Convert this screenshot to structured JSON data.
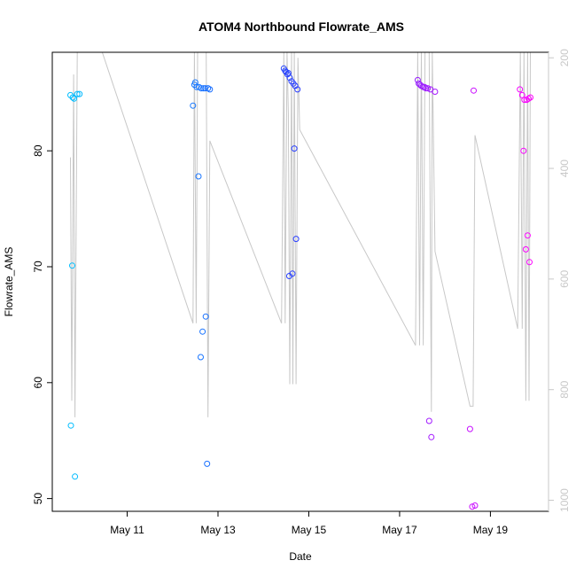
{
  "chart_data": {
    "type": "scatter",
    "title": "ATOM4 Northbound Flowrate_AMS",
    "xlabel": "Date",
    "ylabel": "Flowrate_AMS",
    "xlim": [
      9.35,
      20.28
    ],
    "ylim": [
      48.9,
      88.5
    ],
    "y2lim": [
      1020,
      190
    ],
    "x_ticks": [
      {
        "value": 11,
        "label": "May 11"
      },
      {
        "value": 13,
        "label": "May 13"
      },
      {
        "value": 15,
        "label": "May 15"
      },
      {
        "value": 17,
        "label": "May 17"
      },
      {
        "value": 19,
        "label": "May 19"
      }
    ],
    "y_ticks": [
      {
        "value": 50,
        "label": "50"
      },
      {
        "value": 60,
        "label": "60"
      },
      {
        "value": 70,
        "label": "70"
      },
      {
        "value": 80,
        "label": "80"
      }
    ],
    "y2_ticks": [
      {
        "value": 200,
        "label": "200"
      },
      {
        "value": 400,
        "label": "400"
      },
      {
        "value": 600,
        "label": "600"
      },
      {
        "value": 800,
        "label": "800"
      },
      {
        "value": 1000,
        "label": "1000"
      }
    ],
    "series": [
      {
        "name": "Flowrate_AMS (points)",
        "color_start": "#00bfff",
        "color_end": "#ff00ff",
        "points": [
          [
            9.75,
            84.8
          ],
          [
            9.76,
            56.3
          ],
          [
            9.79,
            70.1
          ],
          [
            9.8,
            84.6
          ],
          [
            9.83,
            84.5
          ],
          [
            9.85,
            51.9
          ],
          [
            9.9,
            84.9
          ],
          [
            9.95,
            84.9
          ],
          [
            12.45,
            83.9
          ],
          [
            12.48,
            85.7
          ],
          [
            12.5,
            85.9
          ],
          [
            12.53,
            85.5
          ],
          [
            12.57,
            77.8
          ],
          [
            12.58,
            85.5
          ],
          [
            12.62,
            62.2
          ],
          [
            12.63,
            85.4
          ],
          [
            12.66,
            64.4
          ],
          [
            12.68,
            85.4
          ],
          [
            12.72,
            85.4
          ],
          [
            12.73,
            65.7
          ],
          [
            12.76,
            53.0
          ],
          [
            12.78,
            85.4
          ],
          [
            12.82,
            85.3
          ],
          [
            14.45,
            87.1
          ],
          [
            14.48,
            86.9
          ],
          [
            14.5,
            86.8
          ],
          [
            14.53,
            86.6
          ],
          [
            14.55,
            86.7
          ],
          [
            14.57,
            69.2
          ],
          [
            14.58,
            86.3
          ],
          [
            14.62,
            86.0
          ],
          [
            14.64,
            69.4
          ],
          [
            14.66,
            85.8
          ],
          [
            14.68,
            80.2
          ],
          [
            14.7,
            85.6
          ],
          [
            14.72,
            72.4
          ],
          [
            14.75,
            85.3
          ],
          [
            17.4,
            86.1
          ],
          [
            17.42,
            85.8
          ],
          [
            17.45,
            85.7
          ],
          [
            17.48,
            85.6
          ],
          [
            17.52,
            85.5
          ],
          [
            17.55,
            85.5
          ],
          [
            17.58,
            85.4
          ],
          [
            17.62,
            85.4
          ],
          [
            17.65,
            56.7
          ],
          [
            17.68,
            85.3
          ],
          [
            17.7,
            55.3
          ],
          [
            17.78,
            85.1
          ],
          [
            18.55,
            56.0
          ],
          [
            18.6,
            49.3
          ],
          [
            18.63,
            85.2
          ],
          [
            18.66,
            49.4
          ],
          [
            19.65,
            85.3
          ],
          [
            19.7,
            84.8
          ],
          [
            19.73,
            80.0
          ],
          [
            19.75,
            84.4
          ],
          [
            19.78,
            71.5
          ],
          [
            19.8,
            84.4
          ],
          [
            19.82,
            72.7
          ],
          [
            19.84,
            84.5
          ],
          [
            19.86,
            70.4
          ],
          [
            19.88,
            84.6
          ]
        ]
      },
      {
        "name": "Secondary series (right axis, grey line)",
        "color": "#c8c8c8",
        "points": [
          [
            9.75,
            380
          ],
          [
            9.78,
            820
          ],
          [
            9.82,
            230
          ],
          [
            9.85,
            850
          ],
          [
            9.9,
            190
          ],
          [
            9.95,
            190
          ],
          [
            10.0,
            190
          ],
          [
            10.45,
            190
          ],
          [
            12.45,
            680
          ],
          [
            12.48,
            190
          ],
          [
            12.52,
            680
          ],
          [
            12.55,
            190
          ],
          [
            12.6,
            190
          ],
          [
            12.65,
            190
          ],
          [
            12.7,
            190
          ],
          [
            12.74,
            190
          ],
          [
            12.78,
            850
          ],
          [
            12.82,
            350
          ],
          [
            14.4,
            680
          ],
          [
            14.45,
            190
          ],
          [
            14.48,
            680
          ],
          [
            14.52,
            190
          ],
          [
            14.55,
            300
          ],
          [
            14.58,
            790
          ],
          [
            14.62,
            190
          ],
          [
            14.65,
            790
          ],
          [
            14.68,
            190
          ],
          [
            14.72,
            790
          ],
          [
            14.76,
            200
          ],
          [
            14.8,
            330
          ],
          [
            17.35,
            720
          ],
          [
            17.4,
            190
          ],
          [
            17.44,
            720
          ],
          [
            17.48,
            190
          ],
          [
            17.52,
            720
          ],
          [
            17.56,
            190
          ],
          [
            17.6,
            190
          ],
          [
            17.65,
            190
          ],
          [
            17.7,
            840
          ],
          [
            17.72,
            190
          ],
          [
            17.78,
            550
          ],
          [
            18.55,
            830
          ],
          [
            18.62,
            830
          ],
          [
            18.66,
            340
          ],
          [
            19.6,
            690
          ],
          [
            19.66,
            190
          ],
          [
            19.7,
            690
          ],
          [
            19.74,
            190
          ],
          [
            19.78,
            820
          ],
          [
            19.82,
            190
          ],
          [
            19.85,
            820
          ],
          [
            19.88,
            190
          ],
          [
            19.95,
            190
          ],
          [
            20.0,
            190
          ]
        ]
      }
    ]
  }
}
